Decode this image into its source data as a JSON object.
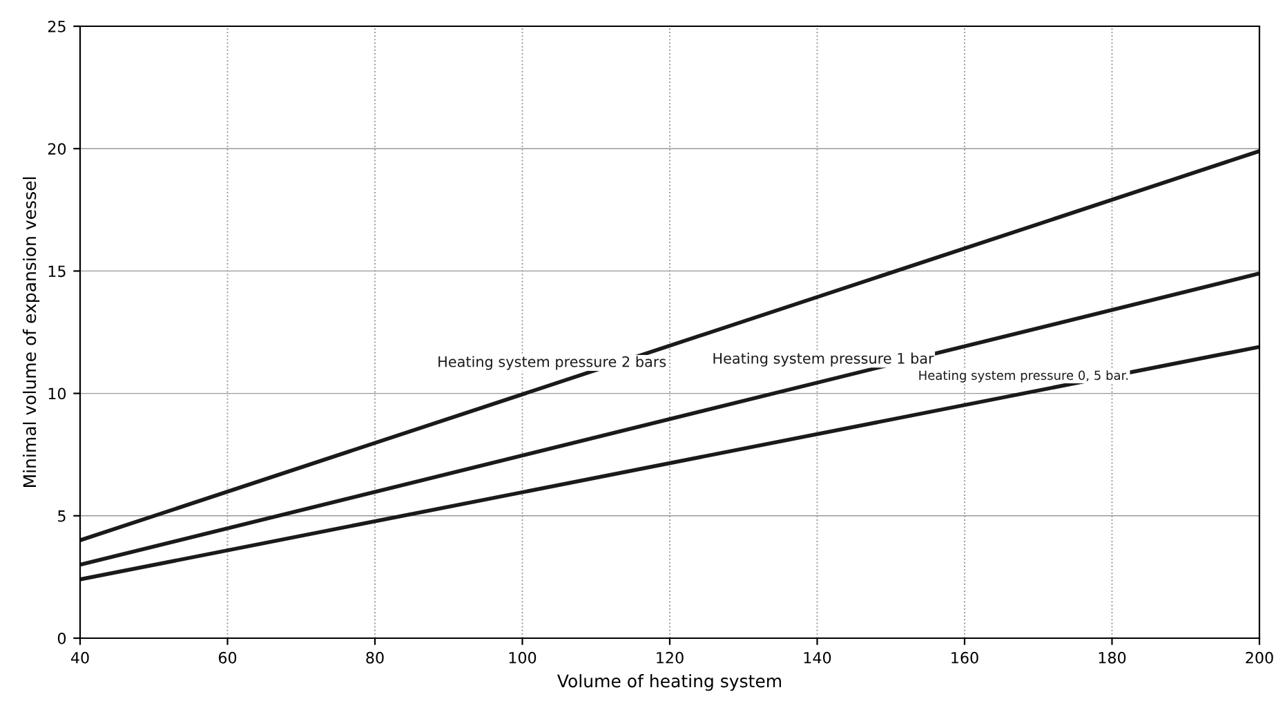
{
  "chart_data": {
    "type": "line",
    "xlabel": "Volume of heating system",
    "ylabel": "Minimal volume of expansion vessel",
    "x": [
      40,
      200
    ],
    "series": [
      {
        "name": "Heating system pressure 2 bars",
        "color": "#1a1a1a",
        "values": [
          4,
          19.9
        ]
      },
      {
        "name": "Heating system pressure 1 bar",
        "color": "#1a1a1a",
        "values": [
          3,
          14.9
        ]
      },
      {
        "name": "Heating system pressure 0, 5 bar.",
        "color": "#1a1a1a",
        "values": [
          2.4,
          11.9
        ]
      }
    ],
    "xlim": [
      40,
      200
    ],
    "ylim": [
      0,
      25
    ],
    "xticks": [
      40,
      60,
      80,
      100,
      120,
      140,
      160,
      180,
      200
    ],
    "yticks": [
      0,
      5,
      10,
      15,
      20,
      25
    ],
    "grid": true,
    "marker": "none",
    "line_style": "solid"
  }
}
